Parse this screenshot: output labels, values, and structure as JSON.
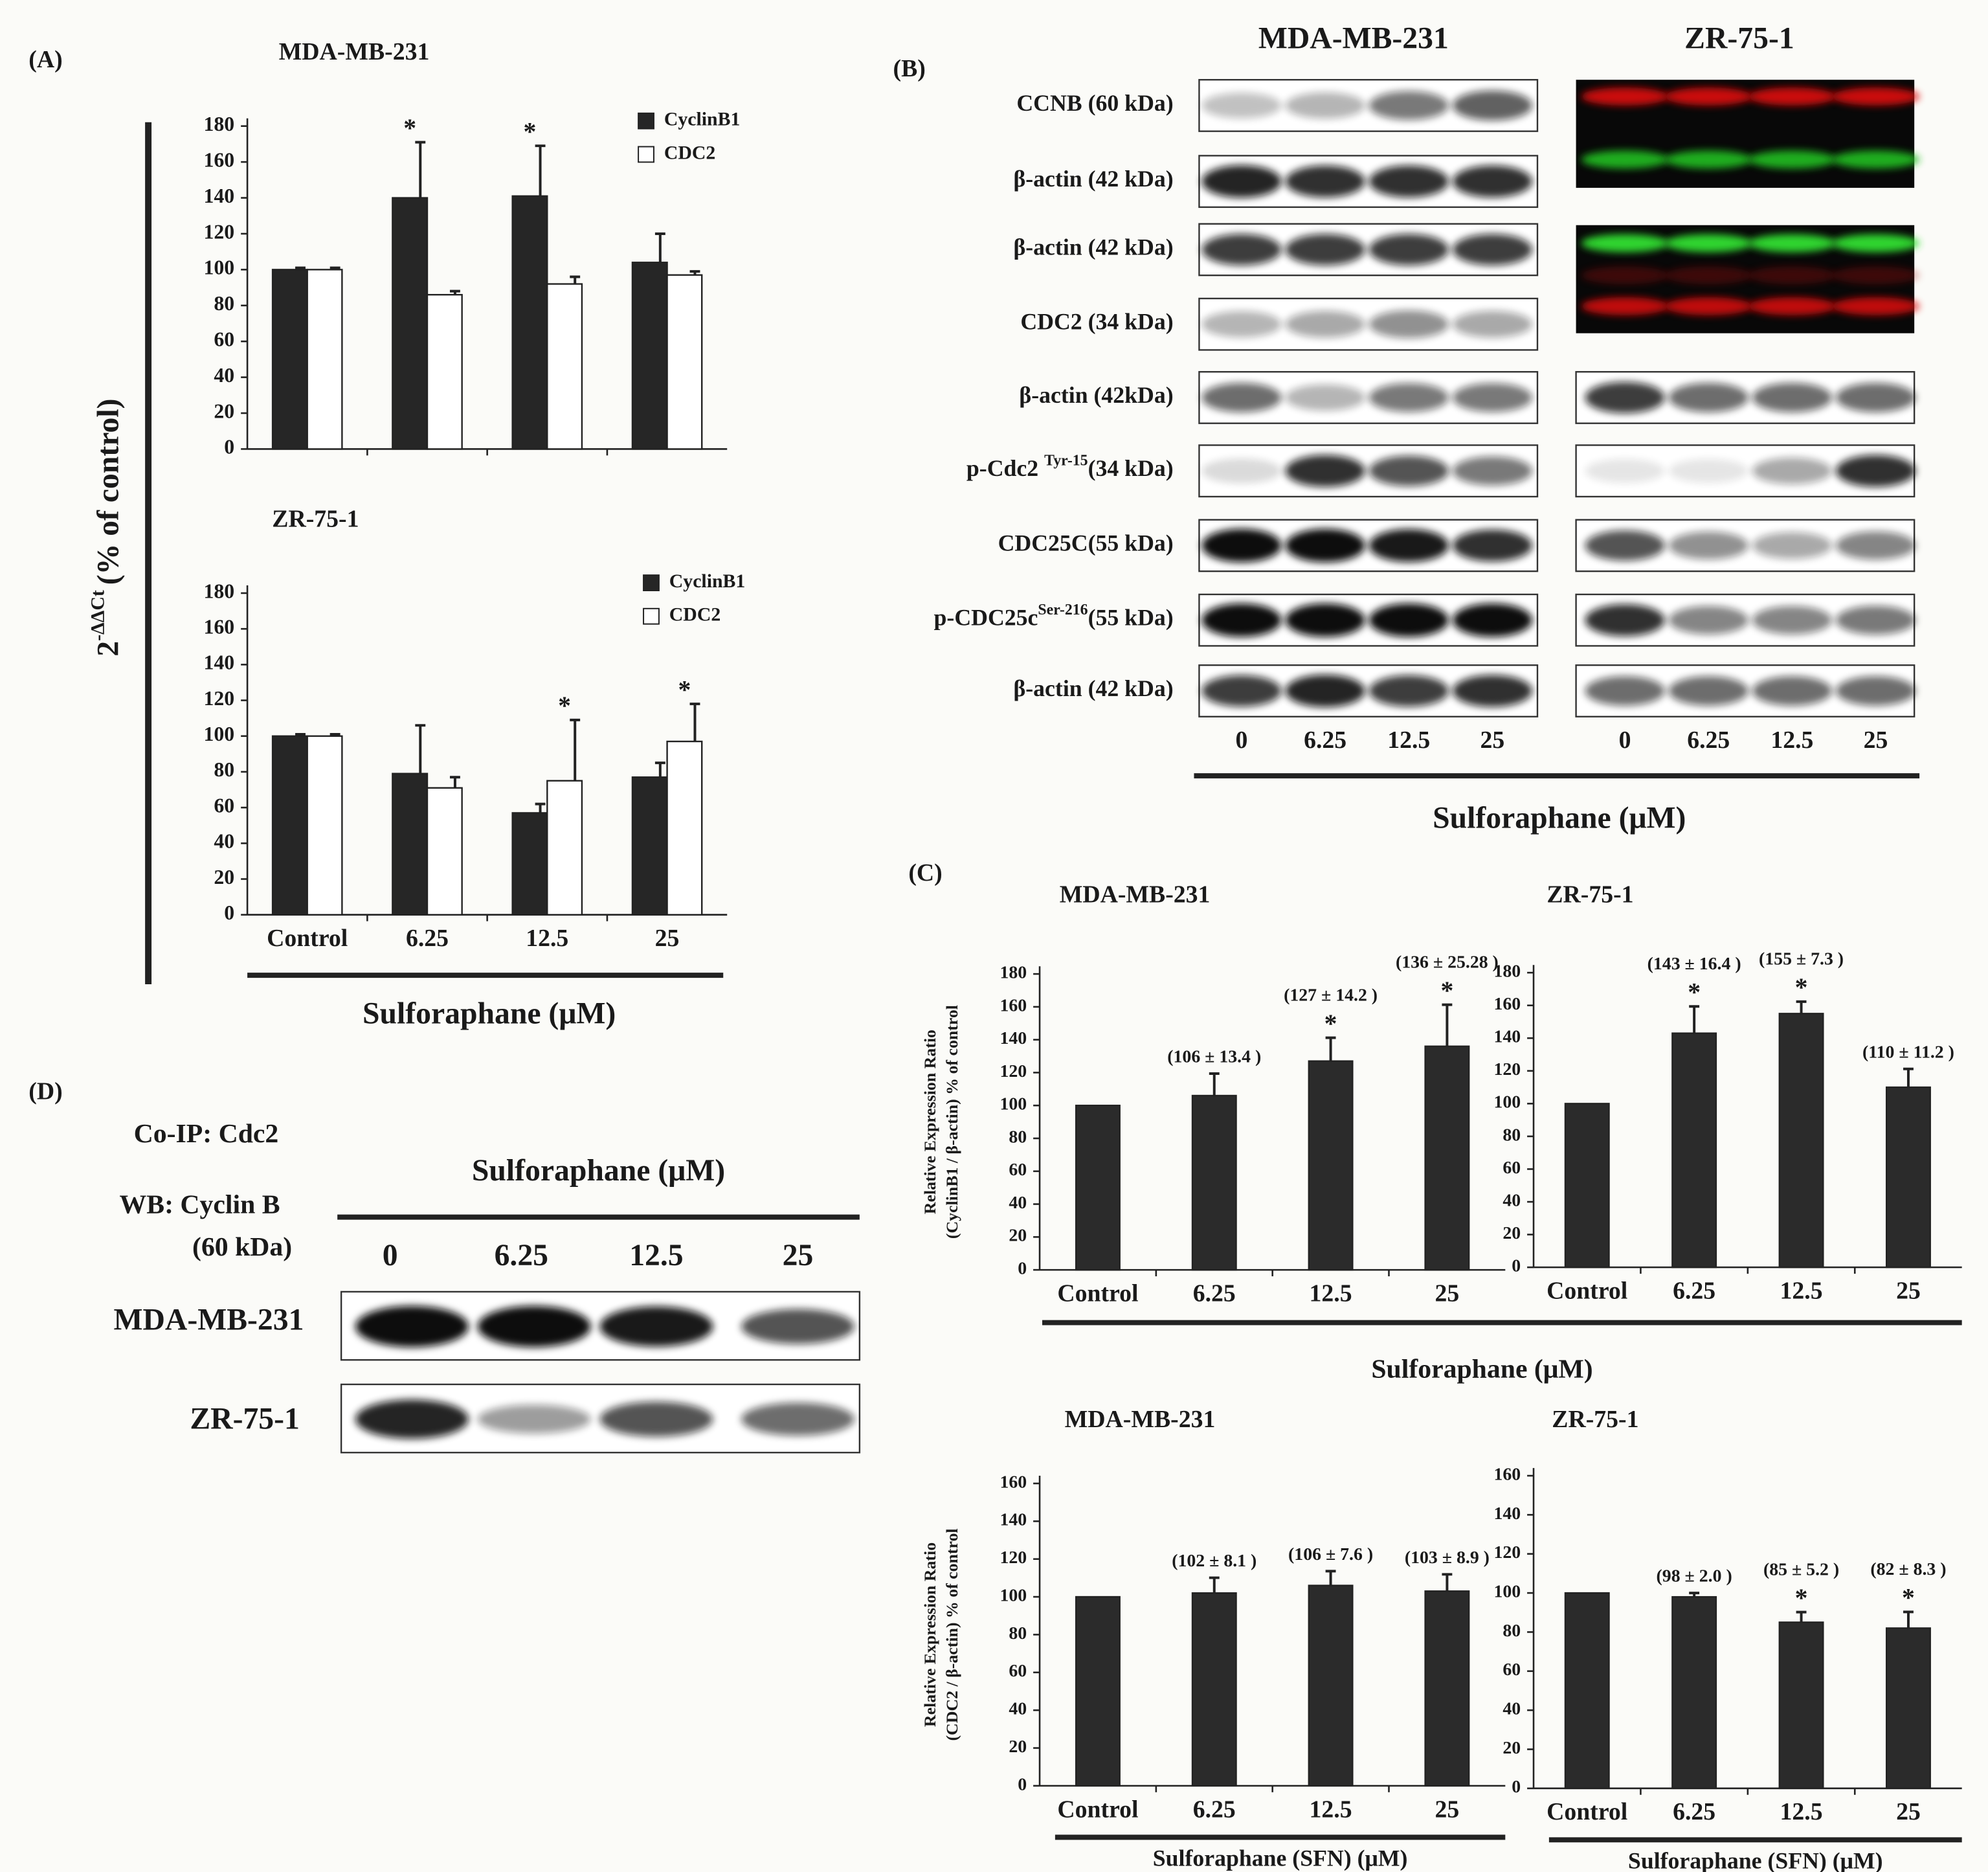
{
  "panel_a": {
    "label": "(A)",
    "y_label": {
      "base": "2",
      "sup": "-ΔΔCt",
      "tail": "(% of control)"
    },
    "categories": [
      "Control",
      "6.25",
      "12.5",
      "25"
    ],
    "x_label": "Sulforaphane (μM)",
    "charts": [
      {
        "type": "bar",
        "title": "MDA-MB-231",
        "ylim": [
          0,
          180
        ],
        "yticks": [
          0,
          20,
          40,
          60,
          80,
          100,
          120,
          140,
          160,
          180
        ],
        "series": [
          {
            "name": "CyclinB1",
            "color": "#262626",
            "values": [
              100,
              140,
              141,
              104
            ],
            "errors": [
              1,
              31,
              28,
              16
            ],
            "stars": [
              null,
              "*",
              "*",
              null
            ]
          },
          {
            "name": "CDC2",
            "color": "#ffffff",
            "values": [
              100,
              86,
              92,
              97
            ],
            "errors": [
              1,
              2,
              4,
              2
            ]
          }
        ]
      },
      {
        "type": "bar",
        "title": "ZR-75-1",
        "ylim": [
          0,
          180
        ],
        "yticks": [
          0,
          20,
          40,
          60,
          80,
          100,
          120,
          140,
          160,
          180
        ],
        "series": [
          {
            "name": "CyclinB1",
            "color": "#262626",
            "values": [
              100,
              79,
              57,
              77
            ],
            "errors": [
              1,
              27,
              5,
              8
            ]
          },
          {
            "name": "CDC2",
            "color": "#ffffff",
            "values": [
              100,
              71,
              75,
              97
            ],
            "errors": [
              1,
              6,
              34,
              21
            ],
            "stars": [
              null,
              null,
              "*",
              "*"
            ]
          }
        ]
      }
    ]
  },
  "panel_b": {
    "label": "(B)",
    "columns": [
      "MDA-MB-231",
      "ZR-75-1"
    ],
    "rows": [
      {
        "label": "CCNB (60 kDa)"
      },
      {
        "label": "β-actin (42 kDa)"
      },
      {
        "label": "β-actin (42 kDa)"
      },
      {
        "label": "CDC2 (34 kDa)"
      },
      {
        "label": "β-actin (42kDa)"
      },
      {
        "label": "p-Cdc2 ",
        "sup": "Tyr-15",
        "tail": "(34 kDa)"
      },
      {
        "label": "CDC25C(55 kDa)"
      },
      {
        "label": "p-CDC25c",
        "sup": "Ser-216",
        "tail": "(55 kDa)"
      },
      {
        "label": "β-actin (42 kDa)"
      }
    ],
    "doses": [
      "0",
      "6.25",
      "12.5",
      "25"
    ],
    "x_label": "Sulforaphane (μM)"
  },
  "panel_c": {
    "label": "(C)",
    "categories": [
      "Control",
      "6.25",
      "12.5",
      "25"
    ],
    "x_label": "Sulforaphane (μM)",
    "charts": [
      {
        "type": "bar",
        "title": "MDA-MB-231",
        "y_label": [
          "Relative Expression Ratio",
          "(CyclinB1 / β-actin) % of control"
        ],
        "color": "#2b2b2b",
        "values": [
          100,
          106,
          127,
          136
        ],
        "errors": [
          null,
          13.4,
          14.2,
          25.28
        ],
        "value_labels": [
          null,
          "(106 ± 13.4 )",
          "(127 ± 14.2 )",
          "(136 ± 25.28 )"
        ],
        "stars": [
          null,
          null,
          "*",
          "*"
        ],
        "ylim": [
          0,
          180
        ],
        "yticks": [
          0,
          20,
          40,
          60,
          80,
          100,
          120,
          140,
          160,
          180
        ]
      },
      {
        "type": "bar",
        "title": "ZR-75-1",
        "color": "#2b2b2b",
        "values": [
          100,
          143,
          155,
          110
        ],
        "errors": [
          null,
          16.4,
          7.3,
          11.2
        ],
        "value_labels": [
          null,
          "(143 ± 16.4 )",
          "(155 ± 7.3 )",
          "(110 ± 11.2 )"
        ],
        "stars": [
          null,
          "*",
          "*",
          null
        ],
        "ylim": [
          0,
          180
        ],
        "yticks": [
          0,
          20,
          40,
          60,
          80,
          100,
          120,
          140,
          160,
          180
        ]
      },
      {
        "type": "bar",
        "title": "MDA-MB-231",
        "y_label": [
          "Relative Expression Ratio",
          "(CDC2 / β-actin) % of control"
        ],
        "x_label": "Sulforaphane (SFN) (μM)",
        "color": "#2b2b2b",
        "values": [
          100,
          102,
          106,
          103
        ],
        "errors": [
          null,
          8.1,
          7.6,
          8.9
        ],
        "value_labels": [
          null,
          "(102 ± 8.1 )",
          "(106 ± 7.6 )",
          "(103 ± 8.9 )"
        ],
        "ylim": [
          0,
          160
        ],
        "yticks": [
          0,
          20,
          40,
          60,
          80,
          100,
          120,
          140,
          160
        ]
      },
      {
        "type": "bar",
        "title": "ZR-75-1",
        "x_label": "Sulforaphane (SFN) (μM)",
        "color": "#2b2b2b",
        "values": [
          100,
          98,
          85,
          82
        ],
        "errors": [
          null,
          2.0,
          5.2,
          8.3
        ],
        "value_labels": [
          null,
          "(98 ± 2.0 )",
          "(85 ± 5.2 )",
          "(82 ± 8.3 )"
        ],
        "stars": [
          null,
          null,
          "*",
          "*"
        ],
        "ylim": [
          0,
          160
        ],
        "yticks": [
          0,
          20,
          40,
          60,
          80,
          100,
          120,
          140,
          160
        ]
      }
    ]
  },
  "panel_d": {
    "label": "(D)",
    "co_ip": "Co-IP: Cdc2",
    "wb": "WB: Cyclin B",
    "wb_size": "(60 kDa)",
    "x_label": "Sulforaphane (μM)",
    "doses": [
      "0",
      "6.25",
      "12.5",
      "25"
    ],
    "rows": [
      "MDA-MB-231",
      "ZR-75-1"
    ]
  }
}
